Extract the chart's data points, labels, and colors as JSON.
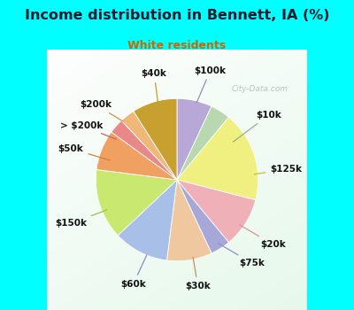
{
  "title": "Income distribution in Bennett, IA (%)",
  "subtitle": "White residents",
  "title_color": "#1a1a2e",
  "subtitle_color": "#cc6600",
  "bg_top_color": "#00ffff",
  "watermark": "City-Data.com",
  "slices": [
    {
      "label": "$100k",
      "value": 7,
      "color": "#b8a8d8"
    },
    {
      "label": "$10k",
      "value": 4,
      "color": "#b8d8b0"
    },
    {
      "label": "$125k",
      "value": 18,
      "color": "#f0f080"
    },
    {
      "label": "$20k",
      "value": 10,
      "color": "#f0b0b8"
    },
    {
      "label": "$75k",
      "value": 4,
      "color": "#a8a8d8"
    },
    {
      "label": "$30k",
      "value": 9,
      "color": "#f0c8a0"
    },
    {
      "label": "$60k",
      "value": 11,
      "color": "#a8c0e8"
    },
    {
      "label": "$150k",
      "value": 14,
      "color": "#c8e870"
    },
    {
      "label": "$50k",
      "value": 8,
      "color": "#f0a060"
    },
    {
      "label": "> $200k",
      "value": 3,
      "color": "#e88888"
    },
    {
      "label": "$200k",
      "value": 3,
      "color": "#f0b878"
    },
    {
      "label": "$40k",
      "value": 9,
      "color": "#c8a030"
    }
  ],
  "figsize": [
    4.0,
    3.5
  ],
  "dpi": 100,
  "startangle": 90
}
